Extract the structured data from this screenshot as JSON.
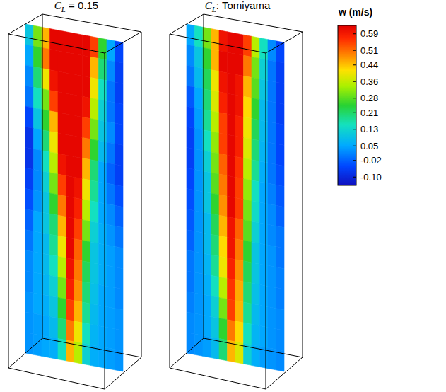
{
  "chart_data": {
    "type": "heatmap",
    "panels": [
      {
        "title": {
          "symbol": "C",
          "subscript": "L",
          "rest": " = 0.15"
        },
        "cells": [
          [
            0.1,
            0.3,
            0.45,
            0.62,
            0.62,
            0.62,
            0.62,
            0.62,
            0.55,
            0.25,
            0.05,
            -0.05
          ],
          [
            0.05,
            0.25,
            0.5,
            0.62,
            0.62,
            0.62,
            0.62,
            0.62,
            0.45,
            0.2,
            0.02,
            -0.06
          ],
          [
            0.02,
            0.2,
            0.4,
            0.6,
            0.62,
            0.62,
            0.62,
            0.62,
            0.4,
            0.15,
            0.0,
            -0.06
          ],
          [
            0.0,
            0.15,
            0.3,
            0.55,
            0.62,
            0.62,
            0.62,
            0.6,
            0.35,
            0.12,
            0.0,
            -0.05
          ],
          [
            -0.05,
            0.1,
            0.25,
            0.45,
            0.62,
            0.62,
            0.62,
            0.55,
            0.3,
            0.1,
            0.02,
            -0.05
          ],
          [
            -0.08,
            0.05,
            0.2,
            0.4,
            0.62,
            0.62,
            0.62,
            0.5,
            0.25,
            0.08,
            0.0,
            -0.06
          ],
          [
            -0.08,
            0.02,
            0.15,
            0.35,
            0.6,
            0.62,
            0.62,
            0.45,
            0.2,
            0.05,
            -0.02,
            -0.06
          ],
          [
            -0.06,
            0.02,
            0.12,
            0.3,
            0.55,
            0.62,
            0.6,
            0.4,
            0.18,
            0.05,
            0.0,
            -0.04
          ],
          [
            -0.04,
            0.03,
            0.1,
            0.25,
            0.5,
            0.62,
            0.58,
            0.35,
            0.15,
            0.05,
            0.02,
            -0.02
          ],
          [
            -0.02,
            0.05,
            0.1,
            0.2,
            0.45,
            0.62,
            0.55,
            0.3,
            0.12,
            0.06,
            0.03,
            0.0
          ],
          [
            0.0,
            0.05,
            0.08,
            0.18,
            0.4,
            0.62,
            0.52,
            0.25,
            0.1,
            0.06,
            0.04,
            0.02
          ],
          [
            0.02,
            0.05,
            0.08,
            0.15,
            0.35,
            0.6,
            0.5,
            0.22,
            0.1,
            0.06,
            0.04,
            0.02
          ],
          [
            0.02,
            0.05,
            0.07,
            0.12,
            0.3,
            0.58,
            0.48,
            0.2,
            0.09,
            0.05,
            0.04,
            0.02
          ],
          [
            0.03,
            0.05,
            0.06,
            0.1,
            0.25,
            0.55,
            0.45,
            0.18,
            0.08,
            0.05,
            0.04,
            0.03
          ],
          [
            0.03,
            0.04,
            0.05,
            0.08,
            0.2,
            0.5,
            0.4,
            0.15,
            0.07,
            0.05,
            0.04,
            0.03
          ],
          [
            0.03,
            0.04,
            0.05,
            0.06,
            0.15,
            0.45,
            0.35,
            0.12,
            0.06,
            0.05,
            0.04,
            0.03
          ]
        ]
      },
      {
        "title": {
          "symbol": "C",
          "subscript": "L",
          "rest": ": Tomiyama"
        },
        "cells": [
          [
            0.05,
            0.15,
            0.3,
            0.45,
            0.6,
            0.62,
            0.62,
            0.55,
            0.35,
            0.15,
            0.02,
            -0.05
          ],
          [
            0.02,
            0.1,
            0.25,
            0.45,
            0.62,
            0.62,
            0.62,
            0.5,
            0.3,
            0.12,
            0.0,
            -0.06
          ],
          [
            0.0,
            0.08,
            0.22,
            0.4,
            0.6,
            0.62,
            0.6,
            0.45,
            0.28,
            0.1,
            0.0,
            -0.06
          ],
          [
            -0.03,
            0.05,
            0.2,
            0.38,
            0.58,
            0.62,
            0.6,
            0.42,
            0.25,
            0.08,
            0.0,
            -0.06
          ],
          [
            -0.05,
            0.04,
            0.18,
            0.35,
            0.55,
            0.62,
            0.58,
            0.4,
            0.22,
            0.08,
            0.0,
            -0.05
          ],
          [
            -0.06,
            0.03,
            0.15,
            0.32,
            0.55,
            0.62,
            0.58,
            0.38,
            0.2,
            0.07,
            0.0,
            -0.05
          ],
          [
            -0.06,
            0.03,
            0.12,
            0.3,
            0.52,
            0.62,
            0.56,
            0.35,
            0.18,
            0.06,
            0.0,
            -0.04
          ],
          [
            -0.05,
            0.03,
            0.1,
            0.28,
            0.5,
            0.62,
            0.55,
            0.32,
            0.15,
            0.05,
            0.01,
            -0.03
          ],
          [
            -0.04,
            0.03,
            0.1,
            0.25,
            0.48,
            0.62,
            0.55,
            0.3,
            0.14,
            0.05,
            0.02,
            -0.02
          ],
          [
            -0.03,
            0.03,
            0.08,
            0.22,
            0.45,
            0.6,
            0.52,
            0.28,
            0.12,
            0.05,
            0.02,
            0.0
          ],
          [
            -0.02,
            0.03,
            0.08,
            0.2,
            0.42,
            0.6,
            0.5,
            0.25,
            0.1,
            0.05,
            0.03,
            0.0
          ],
          [
            0.0,
            0.03,
            0.07,
            0.18,
            0.4,
            0.58,
            0.48,
            0.22,
            0.1,
            0.05,
            0.03,
            0.01
          ],
          [
            0.0,
            0.03,
            0.06,
            0.15,
            0.35,
            0.56,
            0.46,
            0.2,
            0.09,
            0.05,
            0.03,
            0.01
          ],
          [
            0.01,
            0.03,
            0.05,
            0.12,
            0.3,
            0.55,
            0.45,
            0.18,
            0.08,
            0.05,
            0.03,
            0.02
          ],
          [
            0.02,
            0.03,
            0.05,
            0.1,
            0.25,
            0.5,
            0.42,
            0.15,
            0.07,
            0.05,
            0.03,
            0.02
          ],
          [
            0.02,
            0.03,
            0.04,
            0.08,
            0.2,
            0.45,
            0.38,
            0.12,
            0.06,
            0.04,
            0.03,
            0.02
          ]
        ]
      }
    ],
    "colorbar": {
      "title": "w (m/s)",
      "range": [
        -0.14,
        0.63
      ],
      "ticks": [
        0.59,
        0.51,
        0.44,
        0.36,
        0.28,
        0.21,
        0.13,
        0.05,
        -0.02,
        {
          "value": -0.1,
          "label": "-0.10"
        }
      ]
    }
  }
}
